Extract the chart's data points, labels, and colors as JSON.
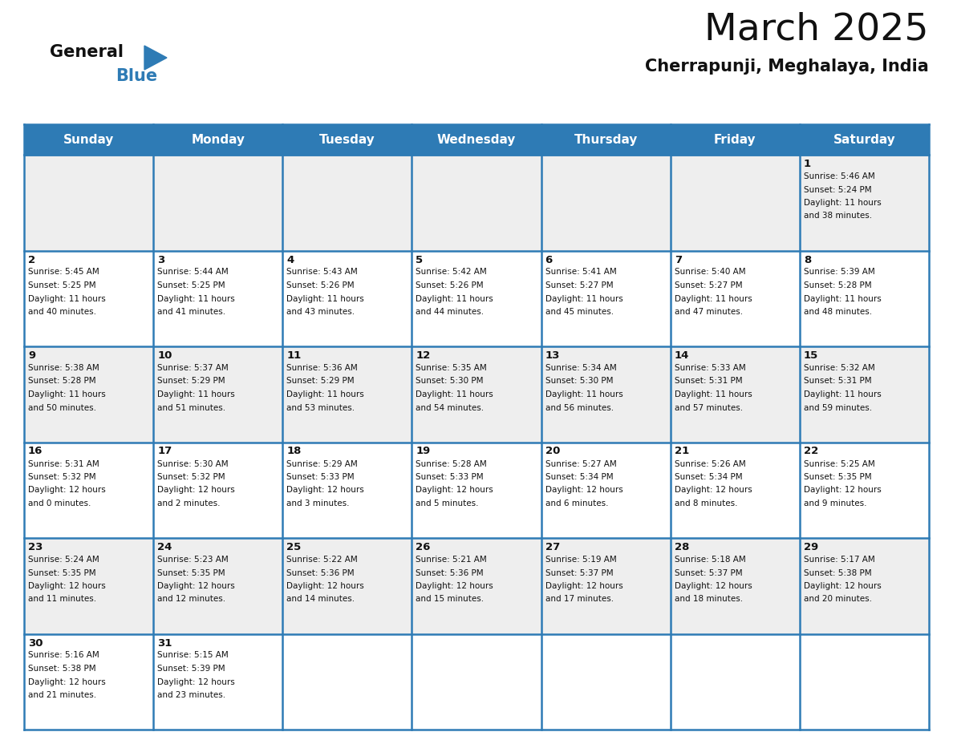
{
  "title": "March 2025",
  "subtitle": "Cherrapunji, Meghalaya, India",
  "header_bg": "#2E7BB5",
  "header_text": "#FFFFFF",
  "cell_bg_odd": "#EEEEEE",
  "cell_bg_even": "#FFFFFF",
  "border_color": "#2E7BB5",
  "days_of_week": [
    "Sunday",
    "Monday",
    "Tuesday",
    "Wednesday",
    "Thursday",
    "Friday",
    "Saturday"
  ],
  "calendar_data": [
    [
      null,
      null,
      null,
      null,
      null,
      null,
      {
        "day": 1,
        "sunrise": "5:46 AM",
        "sunset": "5:24 PM",
        "daylight": "11 hours and 38 minutes."
      }
    ],
    [
      {
        "day": 2,
        "sunrise": "5:45 AM",
        "sunset": "5:25 PM",
        "daylight": "11 hours and 40 minutes."
      },
      {
        "day": 3,
        "sunrise": "5:44 AM",
        "sunset": "5:25 PM",
        "daylight": "11 hours and 41 minutes."
      },
      {
        "day": 4,
        "sunrise": "5:43 AM",
        "sunset": "5:26 PM",
        "daylight": "11 hours and 43 minutes."
      },
      {
        "day": 5,
        "sunrise": "5:42 AM",
        "sunset": "5:26 PM",
        "daylight": "11 hours and 44 minutes."
      },
      {
        "day": 6,
        "sunrise": "5:41 AM",
        "sunset": "5:27 PM",
        "daylight": "11 hours and 45 minutes."
      },
      {
        "day": 7,
        "sunrise": "5:40 AM",
        "sunset": "5:27 PM",
        "daylight": "11 hours and 47 minutes."
      },
      {
        "day": 8,
        "sunrise": "5:39 AM",
        "sunset": "5:28 PM",
        "daylight": "11 hours and 48 minutes."
      }
    ],
    [
      {
        "day": 9,
        "sunrise": "5:38 AM",
        "sunset": "5:28 PM",
        "daylight": "11 hours and 50 minutes."
      },
      {
        "day": 10,
        "sunrise": "5:37 AM",
        "sunset": "5:29 PM",
        "daylight": "11 hours and 51 minutes."
      },
      {
        "day": 11,
        "sunrise": "5:36 AM",
        "sunset": "5:29 PM",
        "daylight": "11 hours and 53 minutes."
      },
      {
        "day": 12,
        "sunrise": "5:35 AM",
        "sunset": "5:30 PM",
        "daylight": "11 hours and 54 minutes."
      },
      {
        "day": 13,
        "sunrise": "5:34 AM",
        "sunset": "5:30 PM",
        "daylight": "11 hours and 56 minutes."
      },
      {
        "day": 14,
        "sunrise": "5:33 AM",
        "sunset": "5:31 PM",
        "daylight": "11 hours and 57 minutes."
      },
      {
        "day": 15,
        "sunrise": "5:32 AM",
        "sunset": "5:31 PM",
        "daylight": "11 hours and 59 minutes."
      }
    ],
    [
      {
        "day": 16,
        "sunrise": "5:31 AM",
        "sunset": "5:32 PM",
        "daylight": "12 hours and 0 minutes."
      },
      {
        "day": 17,
        "sunrise": "5:30 AM",
        "sunset": "5:32 PM",
        "daylight": "12 hours and 2 minutes."
      },
      {
        "day": 18,
        "sunrise": "5:29 AM",
        "sunset": "5:33 PM",
        "daylight": "12 hours and 3 minutes."
      },
      {
        "day": 19,
        "sunrise": "5:28 AM",
        "sunset": "5:33 PM",
        "daylight": "12 hours and 5 minutes."
      },
      {
        "day": 20,
        "sunrise": "5:27 AM",
        "sunset": "5:34 PM",
        "daylight": "12 hours and 6 minutes."
      },
      {
        "day": 21,
        "sunrise": "5:26 AM",
        "sunset": "5:34 PM",
        "daylight": "12 hours and 8 minutes."
      },
      {
        "day": 22,
        "sunrise": "5:25 AM",
        "sunset": "5:35 PM",
        "daylight": "12 hours and 9 minutes."
      }
    ],
    [
      {
        "day": 23,
        "sunrise": "5:24 AM",
        "sunset": "5:35 PM",
        "daylight": "12 hours and 11 minutes."
      },
      {
        "day": 24,
        "sunrise": "5:23 AM",
        "sunset": "5:35 PM",
        "daylight": "12 hours and 12 minutes."
      },
      {
        "day": 25,
        "sunrise": "5:22 AM",
        "sunset": "5:36 PM",
        "daylight": "12 hours and 14 minutes."
      },
      {
        "day": 26,
        "sunrise": "5:21 AM",
        "sunset": "5:36 PM",
        "daylight": "12 hours and 15 minutes."
      },
      {
        "day": 27,
        "sunrise": "5:19 AM",
        "sunset": "5:37 PM",
        "daylight": "12 hours and 17 minutes."
      },
      {
        "day": 28,
        "sunrise": "5:18 AM",
        "sunset": "5:37 PM",
        "daylight": "12 hours and 18 minutes."
      },
      {
        "day": 29,
        "sunrise": "5:17 AM",
        "sunset": "5:38 PM",
        "daylight": "12 hours and 20 minutes."
      }
    ],
    [
      {
        "day": 30,
        "sunrise": "5:16 AM",
        "sunset": "5:38 PM",
        "daylight": "12 hours and 21 minutes."
      },
      {
        "day": 31,
        "sunrise": "5:15 AM",
        "sunset": "5:39 PM",
        "daylight": "12 hours and 23 minutes."
      },
      null,
      null,
      null,
      null,
      null
    ]
  ],
  "logo_text_general": "General",
  "logo_text_blue": "Blue",
  "logo_triangle_color": "#2E7BB5",
  "day_number_fontsize": 9.5,
  "cell_text_fontsize": 7.5,
  "header_fontsize": 11,
  "title_fontsize": 34,
  "subtitle_fontsize": 15
}
